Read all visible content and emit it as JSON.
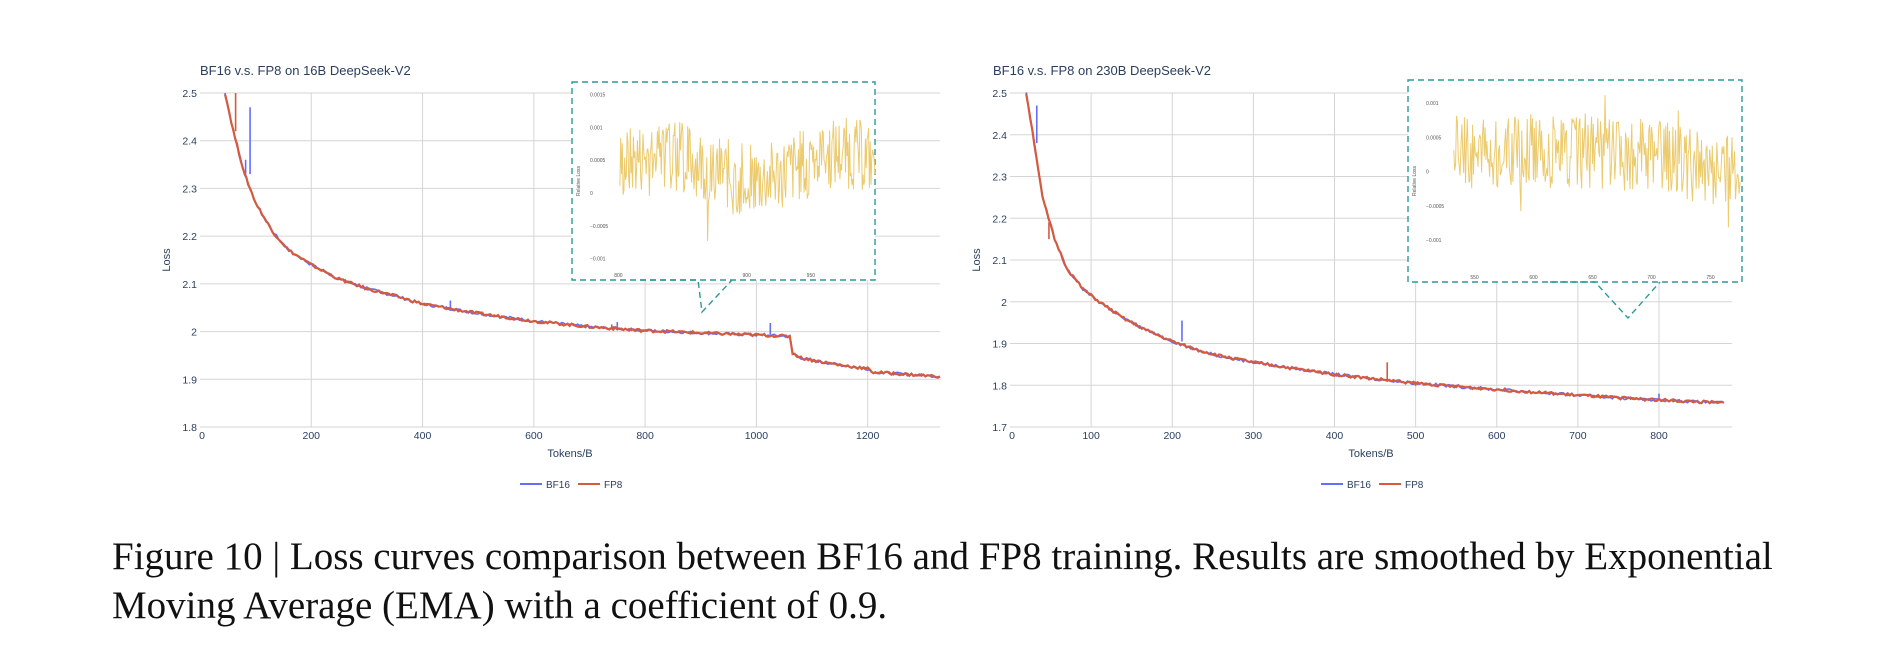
{
  "chart_data": [
    {
      "type": "line",
      "title": "BF16 v.s. FP8 on 16B DeepSeek-V2",
      "xlabel": "Tokens/B",
      "ylabel": "Loss",
      "xlim": [
        0,
        1330
      ],
      "ylim": [
        1.8,
        2.5
      ],
      "xticks": [
        0,
        200,
        400,
        600,
        800,
        1000,
        1200
      ],
      "yticks": [
        1.8,
        1.9,
        2,
        2.1,
        2.2,
        2.3,
        2.4,
        2.5
      ],
      "grid": true,
      "legend": "bottom-center",
      "series": [
        {
          "name": "BF16",
          "color": "#636efa",
          "points": [
            [
              45,
              2.5
            ],
            [
              60,
              2.42
            ],
            [
              80,
              2.33
            ],
            [
              100,
              2.27
            ],
            [
              130,
              2.21
            ],
            [
              160,
              2.17
            ],
            [
              200,
              2.14
            ],
            [
              250,
              2.11
            ],
            [
              300,
              2.09
            ],
            [
              350,
              2.075
            ],
            [
              400,
              2.058
            ],
            [
              450,
              2.048
            ],
            [
              500,
              2.038
            ],
            [
              550,
              2.03
            ],
            [
              600,
              2.022
            ],
            [
              650,
              2.016
            ],
            [
              700,
              2.01
            ],
            [
              750,
              2.006
            ],
            [
              800,
              2.002
            ],
            [
              850,
              2.0
            ],
            [
              900,
              1.997
            ],
            [
              950,
              1.995
            ],
            [
              1000,
              1.993
            ],
            [
              1060,
              1.99
            ],
            [
              1065,
              1.955
            ],
            [
              1080,
              1.945
            ],
            [
              1100,
              1.94
            ],
            [
              1150,
              1.93
            ],
            [
              1200,
              1.922
            ],
            [
              1210,
              1.915
            ],
            [
              1250,
              1.912
            ],
            [
              1300,
              1.908
            ],
            [
              1330,
              1.906
            ]
          ],
          "spikes": [
            [
              82,
              2.36
            ],
            [
              90,
              2.47
            ],
            [
              300,
              2.095
            ],
            [
              450,
              2.065
            ],
            [
              750,
              2.02
            ],
            [
              1025,
              2.018
            ]
          ]
        },
        {
          "name": "FP8",
          "color": "#d45a40",
          "points": [
            [
              45,
              2.5
            ],
            [
              60,
              2.42
            ],
            [
              80,
              2.33
            ],
            [
              100,
              2.27
            ],
            [
              130,
              2.21
            ],
            [
              160,
              2.17
            ],
            [
              200,
              2.14
            ],
            [
              250,
              2.11
            ],
            [
              300,
              2.09
            ],
            [
              350,
              2.075
            ],
            [
              400,
              2.058
            ],
            [
              450,
              2.048
            ],
            [
              500,
              2.038
            ],
            [
              550,
              2.03
            ],
            [
              600,
              2.022
            ],
            [
              650,
              2.016
            ],
            [
              700,
              2.01
            ],
            [
              750,
              2.006
            ],
            [
              800,
              2.002
            ],
            [
              850,
              2.0
            ],
            [
              900,
              1.997
            ],
            [
              950,
              1.995
            ],
            [
              1000,
              1.993
            ],
            [
              1060,
              1.99
            ],
            [
              1065,
              1.955
            ],
            [
              1080,
              1.945
            ],
            [
              1100,
              1.94
            ],
            [
              1150,
              1.93
            ],
            [
              1200,
              1.922
            ],
            [
              1210,
              1.915
            ],
            [
              1250,
              1.912
            ],
            [
              1300,
              1.908
            ],
            [
              1330,
              1.906
            ]
          ],
          "spikes": [
            [
              64,
              2.5
            ],
            [
              320,
              2.09
            ],
            [
              740,
              2.015
            ]
          ]
        }
      ],
      "inset": {
        "yticks": [
          "0.0015",
          "0.001",
          "0.0005",
          "0",
          "−0.0005",
          "−0.001"
        ],
        "ytick_values": [
          0.0015,
          0.001,
          0.0005,
          0,
          -0.0005,
          -0.001
        ],
        "ylim": [
          -0.00105,
          0.0016
        ],
        "xticks": [
          "800",
          "900",
          "950"
        ],
        "xtick_values": [
          800,
          900,
          950
        ],
        "xlim": [
          795,
          1000
        ],
        "ylabel": "Relative Loss",
        "color": "#eccb6e",
        "zoom_from_x": 900
      }
    },
    {
      "type": "line",
      "title": "BF16 v.s. FP8 on 230B DeepSeek-V2",
      "xlabel": "Tokens/B",
      "ylabel": "Loss",
      "xlim": [
        0,
        890
      ],
      "ylim": [
        1.7,
        2.5
      ],
      "xticks": [
        0,
        100,
        200,
        300,
        400,
        500,
        600,
        700,
        800
      ],
      "yticks": [
        1.7,
        1.8,
        1.9,
        2,
        2.1,
        2.2,
        2.3,
        2.4,
        2.5
      ],
      "grid": true,
      "legend": "bottom-center",
      "series": [
        {
          "name": "BF16",
          "color": "#636efa",
          "points": [
            [
              20,
              2.5
            ],
            [
              30,
              2.38
            ],
            [
              40,
              2.25
            ],
            [
              55,
              2.15
            ],
            [
              70,
              2.08
            ],
            [
              90,
              2.03
            ],
            [
              110,
              2.0
            ],
            [
              140,
              1.96
            ],
            [
              170,
              1.93
            ],
            [
              200,
              1.905
            ],
            [
              230,
              1.885
            ],
            [
              260,
              1.87
            ],
            [
              300,
              1.855
            ],
            [
              350,
              1.84
            ],
            [
              400,
              1.826
            ],
            [
              450,
              1.815
            ],
            [
              500,
              1.805
            ],
            [
              550,
              1.797
            ],
            [
              600,
              1.79
            ],
            [
              650,
              1.783
            ],
            [
              700,
              1.776
            ],
            [
              750,
              1.77
            ],
            [
              800,
              1.765
            ],
            [
              850,
              1.76
            ],
            [
              880,
              1.758
            ]
          ],
          "spikes": [
            [
              33,
              2.47
            ],
            [
              212,
              1.955
            ],
            [
              800,
              1.78
            ]
          ]
        },
        {
          "name": "FP8",
          "color": "#d45a40",
          "points": [
            [
              20,
              2.5
            ],
            [
              30,
              2.38
            ],
            [
              40,
              2.25
            ],
            [
              55,
              2.15
            ],
            [
              70,
              2.08
            ],
            [
              90,
              2.03
            ],
            [
              110,
              2.0
            ],
            [
              140,
              1.96
            ],
            [
              170,
              1.93
            ],
            [
              200,
              1.905
            ],
            [
              230,
              1.885
            ],
            [
              260,
              1.87
            ],
            [
              300,
              1.855
            ],
            [
              350,
              1.84
            ],
            [
              400,
              1.826
            ],
            [
              450,
              1.815
            ],
            [
              500,
              1.805
            ],
            [
              550,
              1.797
            ],
            [
              600,
              1.79
            ],
            [
              650,
              1.783
            ],
            [
              700,
              1.776
            ],
            [
              750,
              1.77
            ],
            [
              800,
              1.765
            ],
            [
              850,
              1.76
            ],
            [
              880,
              1.758
            ]
          ],
          "spikes": [
            [
              48,
              2.19
            ],
            [
              465,
              1.855
            ]
          ]
        }
      ],
      "inset": {
        "yticks": [
          "0.001",
          "0.0005",
          "0",
          "−0.0005",
          "−0.001"
        ],
        "ytick_values": [
          0.001,
          0.0005,
          0,
          -0.0005,
          -0.001
        ],
        "ylim": [
          -0.00135,
          0.00125
        ],
        "xticks": [
          "550",
          "600",
          "650",
          "700",
          "750"
        ],
        "xtick_values": [
          550,
          600,
          650,
          700,
          750
        ],
        "xlim": [
          525,
          775
        ],
        "ylabel": "Relative Loss",
        "color": "#eccb6e",
        "zoom_from_x": 760
      }
    }
  ],
  "caption": "Figure 10 | Loss curves comparison between BF16 and FP8 training. Results are smoothed by Exponential Moving Average (EMA) with a coefficient of 0.9."
}
